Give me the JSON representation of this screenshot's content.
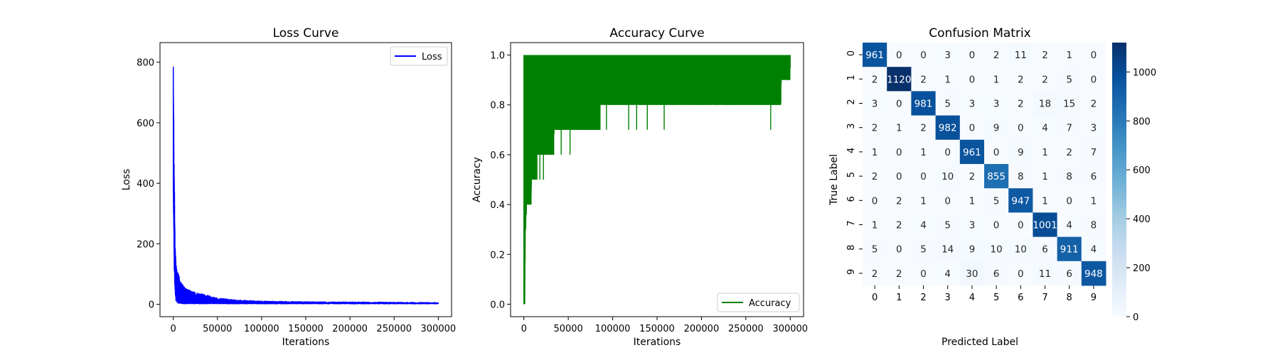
{
  "charts": [
    {
      "type": "line",
      "title": "Loss Curve",
      "xlabel": "Iterations",
      "ylabel": "Loss",
      "xlim": [
        -15000,
        315000
      ],
      "ylim": [
        -41,
        865
      ],
      "xticks": [
        0,
        50000,
        100000,
        150000,
        200000,
        250000,
        300000
      ],
      "yticks": [
        0,
        200,
        400,
        600,
        800
      ],
      "legend": {
        "position": "upper-right",
        "entries": [
          {
            "label": "Loss",
            "color": "#0000ff"
          }
        ]
      },
      "series": [
        {
          "name": "Loss",
          "color": "#0000ff",
          "x": [
            0,
            1000,
            2000,
            3000,
            5000,
            8000,
            12000,
            20000,
            30000,
            50000,
            75000,
            100000,
            150000,
            200000,
            250000,
            300000
          ],
          "y_high": [
            822,
            500,
            230,
            140,
            110,
            80,
            60,
            45,
            38,
            22,
            15,
            12,
            10,
            9,
            8,
            7
          ],
          "y_low": [
            380,
            120,
            40,
            10,
            2,
            1,
            0,
            0,
            0,
            0,
            0,
            0,
            0,
            0,
            0,
            0
          ]
        }
      ]
    },
    {
      "type": "line",
      "title": "Accuracy Curve",
      "xlabel": "Iterations",
      "ylabel": "Accuracy",
      "xlim": [
        -15000,
        315000
      ],
      "ylim": [
        -0.05,
        1.05
      ],
      "xticks": [
        0,
        50000,
        100000,
        150000,
        200000,
        250000,
        300000
      ],
      "yticks": [
        0.0,
        0.2,
        0.4,
        0.6,
        0.8,
        1.0
      ],
      "legend": {
        "position": "lower-right",
        "entries": [
          {
            "label": "Accuracy",
            "color": "#008000"
          }
        ]
      },
      "series": [
        {
          "name": "Accuracy",
          "color": "#008000",
          "upper": 1.0,
          "floor_steps": [
            [
              0,
              0.0
            ],
            [
              2000,
              0.3
            ],
            [
              3000,
              0.4
            ],
            [
              9000,
              0.5
            ],
            [
              15000,
              0.6
            ],
            [
              34000,
              0.7
            ],
            [
              86000,
              0.8
            ],
            [
              290000,
              0.9
            ],
            [
              300000,
              0.9
            ]
          ],
          "dips": [
            [
              12000,
              0.5
            ],
            [
              18000,
              0.5
            ],
            [
              22000,
              0.5
            ],
            [
              42000,
              0.6
            ],
            [
              52000,
              0.6
            ],
            [
              73000,
              0.7
            ],
            [
              80000,
              0.7
            ],
            [
              93000,
              0.7
            ],
            [
              118000,
              0.7
            ],
            [
              127000,
              0.7
            ],
            [
              139000,
              0.7
            ],
            [
              158000,
              0.7
            ],
            [
              175000,
              0.8
            ],
            [
              195000,
              0.8
            ],
            [
              232000,
              0.8
            ],
            [
              236000,
              0.8
            ],
            [
              243000,
              0.8
            ],
            [
              257000,
              0.8
            ],
            [
              262000,
              0.8
            ],
            [
              278000,
              0.7
            ],
            [
              285000,
              0.8
            ]
          ]
        }
      ]
    }
  ],
  "confusion_matrix": {
    "type": "heatmap",
    "title": "Confusion Matrix",
    "xlabel": "Predicted Label",
    "ylabel": "True Label",
    "labels": [
      "0",
      "1",
      "2",
      "3",
      "4",
      "5",
      "6",
      "7",
      "8",
      "9"
    ],
    "matrix": [
      [
        961,
        0,
        0,
        3,
        0,
        2,
        11,
        2,
        1,
        0
      ],
      [
        2,
        1120,
        2,
        1,
        0,
        1,
        2,
        2,
        5,
        0
      ],
      [
        3,
        0,
        981,
        5,
        3,
        3,
        2,
        18,
        15,
        2
      ],
      [
        2,
        1,
        2,
        982,
        0,
        9,
        0,
        4,
        7,
        3
      ],
      [
        1,
        0,
        1,
        0,
        961,
        0,
        9,
        1,
        2,
        7
      ],
      [
        2,
        0,
        0,
        10,
        2,
        855,
        8,
        1,
        8,
        6
      ],
      [
        0,
        2,
        1,
        0,
        1,
        5,
        947,
        1,
        0,
        1
      ],
      [
        1,
        2,
        4,
        5,
        3,
        0,
        0,
        1001,
        4,
        8
      ],
      [
        5,
        0,
        5,
        14,
        9,
        10,
        10,
        6,
        911,
        4
      ],
      [
        2,
        2,
        0,
        4,
        30,
        6,
        0,
        11,
        6,
        948
      ]
    ],
    "colormap": "Blues",
    "colorbar": {
      "min": 0,
      "max": 1120,
      "ticks": [
        0,
        200,
        400,
        600,
        800,
        1000
      ]
    }
  }
}
